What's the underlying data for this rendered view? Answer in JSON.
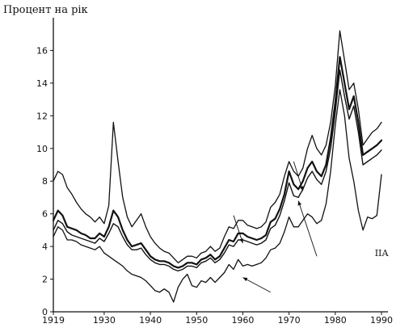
{
  "chart_data": {
    "type": "line",
    "title": "",
    "ylabel": "Процент на рік",
    "xlabel": "",
    "xlim": [
      1919,
      1990
    ],
    "ylim": [
      0,
      18
    ],
    "xticks": [
      "1919",
      "1930",
      "1940",
      "1950",
      "1960",
      "1970",
      "1980",
      "1990"
    ],
    "yticks": [
      "0",
      "2",
      "4",
      "6",
      "8",
      "10",
      "12",
      "14",
      "16"
    ],
    "grid": false,
    "legend": "none",
    "annotations": [
      {
        "text": "ІІА",
        "x": 1991,
        "y": 3.6
      }
    ],
    "arrows": [
      {
        "from": [
          1958,
          5.9
        ],
        "to": [
          1960,
          4.2
        ]
      },
      {
        "from": [
          1971,
          9.2
        ],
        "to": [
          1973,
          7.4
        ]
      },
      {
        "from": [
          1976,
          3.4
        ],
        "to": [
          1972,
          6.8
        ]
      },
      {
        "from": [
          1966,
          1.2
        ],
        "to": [
          1960,
          2.1
        ]
      }
    ],
    "series": [
      {
        "x": [
          1919,
          1920,
          1921,
          1922,
          1923,
          1924,
          1925,
          1926,
          1927,
          1928,
          1929,
          1930,
          1931,
          1932,
          1933,
          1934,
          1935,
          1936,
          1937,
          1938,
          1939,
          1940,
          1941,
          1942,
          1943,
          1944,
          1945,
          1946,
          1947,
          1948,
          1949,
          1950,
          1951,
          1952,
          1953,
          1954,
          1955,
          1956,
          1957,
          1958,
          1959,
          1960,
          1961,
          1962,
          1963,
          1964,
          1965,
          1966,
          1967,
          1968,
          1969,
          1970,
          1971,
          1972,
          1973,
          1974,
          1975,
          1976,
          1977,
          1978,
          1979,
          1980,
          1981,
          1982,
          1983,
          1984,
          1985,
          1986,
          1987,
          1988,
          1989,
          1990
        ],
        "values": [
          8.0,
          8.6,
          8.4,
          7.6,
          7.2,
          6.7,
          6.3,
          6.0,
          5.8,
          5.5,
          5.8,
          5.4,
          6.5,
          11.6,
          9.2,
          7.0,
          5.8,
          5.2,
          5.6,
          6.0,
          5.2,
          4.6,
          4.2,
          3.9,
          3.7,
          3.6,
          3.3,
          3.0,
          3.2,
          3.4,
          3.4,
          3.3,
          3.6,
          3.7,
          4.0,
          3.7,
          3.9,
          4.6,
          5.2,
          5.1,
          5.6,
          5.6,
          5.3,
          5.2,
          5.1,
          5.2,
          5.5,
          6.4,
          6.7,
          7.2,
          8.3,
          9.2,
          8.6,
          8.3,
          8.8,
          10.0,
          10.8,
          10.0,
          9.6,
          10.2,
          11.6,
          13.8,
          17.2,
          15.4,
          13.6,
          14.0,
          12.4,
          10.2,
          10.6,
          11.0,
          11.2,
          11.6
        ]
      },
      {
        "x": [
          1919,
          1920,
          1921,
          1922,
          1923,
          1924,
          1925,
          1926,
          1927,
          1928,
          1929,
          1930,
          1931,
          1932,
          1933,
          1934,
          1935,
          1936,
          1937,
          1938,
          1939,
          1940,
          1941,
          1942,
          1943,
          1944,
          1945,
          1946,
          1947,
          1948,
          1949,
          1950,
          1951,
          1952,
          1953,
          1954,
          1955,
          1956,
          1957,
          1958,
          1959,
          1960,
          1961,
          1962,
          1963,
          1964,
          1965,
          1966,
          1967,
          1968,
          1969,
          1970,
          1971,
          1972,
          1973,
          1974,
          1975,
          1976,
          1977,
          1978,
          1979,
          1980,
          1981,
          1982,
          1983,
          1984,
          1985,
          1986,
          1987,
          1988,
          1989,
          1990
        ],
        "values": [
          5.6,
          6.2,
          5.9,
          5.2,
          5.1,
          5.0,
          4.8,
          4.7,
          4.5,
          4.5,
          4.8,
          4.6,
          5.2,
          6.2,
          5.8,
          5.0,
          4.4,
          4.0,
          4.1,
          4.2,
          3.8,
          3.4,
          3.2,
          3.1,
          3.1,
          3.0,
          2.8,
          2.7,
          2.8,
          3.0,
          3.0,
          2.9,
          3.2,
          3.3,
          3.5,
          3.2,
          3.4,
          3.9,
          4.4,
          4.3,
          4.8,
          4.8,
          4.6,
          4.5,
          4.4,
          4.5,
          4.7,
          5.5,
          5.7,
          6.3,
          7.2,
          8.6,
          7.8,
          7.5,
          8.0,
          8.8,
          9.2,
          8.6,
          8.3,
          9.0,
          10.6,
          12.8,
          15.6,
          14.0,
          12.4,
          13.2,
          11.6,
          9.6,
          9.8,
          10.0,
          10.2,
          10.5
        ]
      },
      {
        "x": [
          1919,
          1920,
          1921,
          1922,
          1923,
          1924,
          1925,
          1926,
          1927,
          1928,
          1929,
          1930,
          1931,
          1932,
          1933,
          1934,
          1935,
          1936,
          1937,
          1938,
          1939,
          1940,
          1941,
          1942,
          1943,
          1944,
          1945,
          1946,
          1947,
          1948,
          1949,
          1950,
          1951,
          1952,
          1953,
          1954,
          1955,
          1956,
          1957,
          1958,
          1959,
          1960,
          1961,
          1962,
          1963,
          1964,
          1965,
          1966,
          1967,
          1968,
          1969,
          1970,
          1971,
          1972,
          1973,
          1974,
          1975,
          1976,
          1977,
          1978,
          1979,
          1980,
          1981,
          1982,
          1983,
          1984,
          1985,
          1986,
          1987,
          1988,
          1989,
          1990
        ],
        "values": [
          5.0,
          5.6,
          5.4,
          4.9,
          4.7,
          4.6,
          4.5,
          4.4,
          4.3,
          4.2,
          4.5,
          4.3,
          4.8,
          5.4,
          5.2,
          4.6,
          4.1,
          3.8,
          3.8,
          3.9,
          3.5,
          3.2,
          3.0,
          2.9,
          2.9,
          2.8,
          2.6,
          2.5,
          2.6,
          2.8,
          2.8,
          2.7,
          3.0,
          3.1,
          3.3,
          3.0,
          3.2,
          3.6,
          4.1,
          4.0,
          4.4,
          4.4,
          4.3,
          4.2,
          4.1,
          4.2,
          4.4,
          5.1,
          5.3,
          5.9,
          6.8,
          7.9,
          7.1,
          7.0,
          7.5,
          8.2,
          8.6,
          8.1,
          7.8,
          8.6,
          10.0,
          12.2,
          14.8,
          13.2,
          11.8,
          12.6,
          11.0,
          9.0,
          9.2,
          9.4,
          9.6,
          9.9
        ]
      },
      {
        "x": [
          1919,
          1920,
          1921,
          1922,
          1923,
          1924,
          1925,
          1926,
          1927,
          1928,
          1929,
          1930,
          1931,
          1932,
          1933,
          1934,
          1935,
          1936,
          1937,
          1938,
          1939,
          1940,
          1941,
          1942,
          1943,
          1944,
          1945,
          1946,
          1947,
          1948,
          1949,
          1950,
          1951,
          1952,
          1953,
          1954,
          1955,
          1956,
          1957,
          1958,
          1959,
          1960,
          1961,
          1962,
          1963,
          1964,
          1965,
          1966,
          1967,
          1968,
          1969,
          1970,
          1971,
          1972,
          1973,
          1974,
          1975,
          1976,
          1977,
          1978,
          1979,
          1980,
          1981,
          1982,
          1983,
          1984,
          1985,
          1986,
          1987,
          1988,
          1989,
          1990
        ],
        "values": [
          4.6,
          5.2,
          5.0,
          4.4,
          4.4,
          4.3,
          4.1,
          4.0,
          3.9,
          3.8,
          4.0,
          3.6,
          3.4,
          3.2,
          3.0,
          2.8,
          2.5,
          2.3,
          2.2,
          2.1,
          1.9,
          1.6,
          1.3,
          1.2,
          1.4,
          1.2,
          0.6,
          1.5,
          2.0,
          2.3,
          1.6,
          1.5,
          1.9,
          1.8,
          2.1,
          1.8,
          2.1,
          2.4,
          2.9,
          2.6,
          3.2,
          2.8,
          2.9,
          2.8,
          2.9,
          3.0,
          3.3,
          3.8,
          3.9,
          4.2,
          4.9,
          5.8,
          5.2,
          5.2,
          5.6,
          6.0,
          5.8,
          5.4,
          5.6,
          6.6,
          8.6,
          11.4,
          13.6,
          12.0,
          9.4,
          8.0,
          6.2,
          5.0,
          5.8,
          5.7,
          5.9,
          8.4
        ]
      }
    ]
  }
}
